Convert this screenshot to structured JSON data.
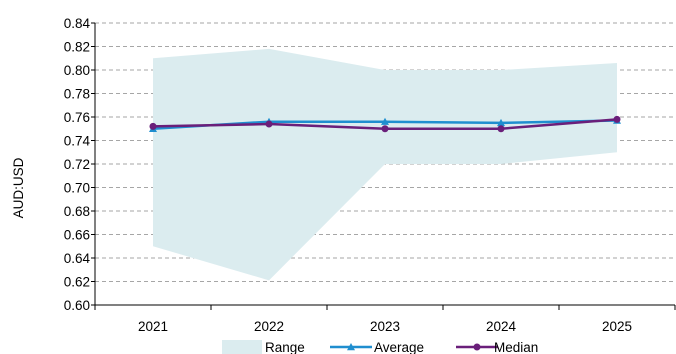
{
  "chart_data": {
    "type": "line",
    "categories": [
      "2021",
      "2022",
      "2023",
      "2024",
      "2025"
    ],
    "ylabel": "AUD:USD",
    "ylim": [
      0.6,
      0.84
    ],
    "yticks": [
      "0.60",
      "0.62",
      "0.64",
      "0.66",
      "0.68",
      "0.70",
      "0.72",
      "0.74",
      "0.76",
      "0.78",
      "0.80",
      "0.82",
      "0.84"
    ],
    "grid": true,
    "legend_position": "bottom",
    "range": {
      "name": "Range",
      "low": [
        0.65,
        0.621,
        0.72,
        0.72,
        0.73
      ],
      "high": [
        0.81,
        0.818,
        0.8,
        0.8,
        0.806
      ],
      "color": "#dbecef"
    },
    "series": [
      {
        "name": "Average",
        "values": [
          0.75,
          0.756,
          0.756,
          0.755,
          0.757
        ],
        "color": "#1f8ecf",
        "marker": "triangle"
      },
      {
        "name": "Median",
        "values": [
          0.752,
          0.754,
          0.75,
          0.75,
          0.758
        ],
        "color": "#6a1f7a",
        "marker": "circle"
      }
    ]
  }
}
